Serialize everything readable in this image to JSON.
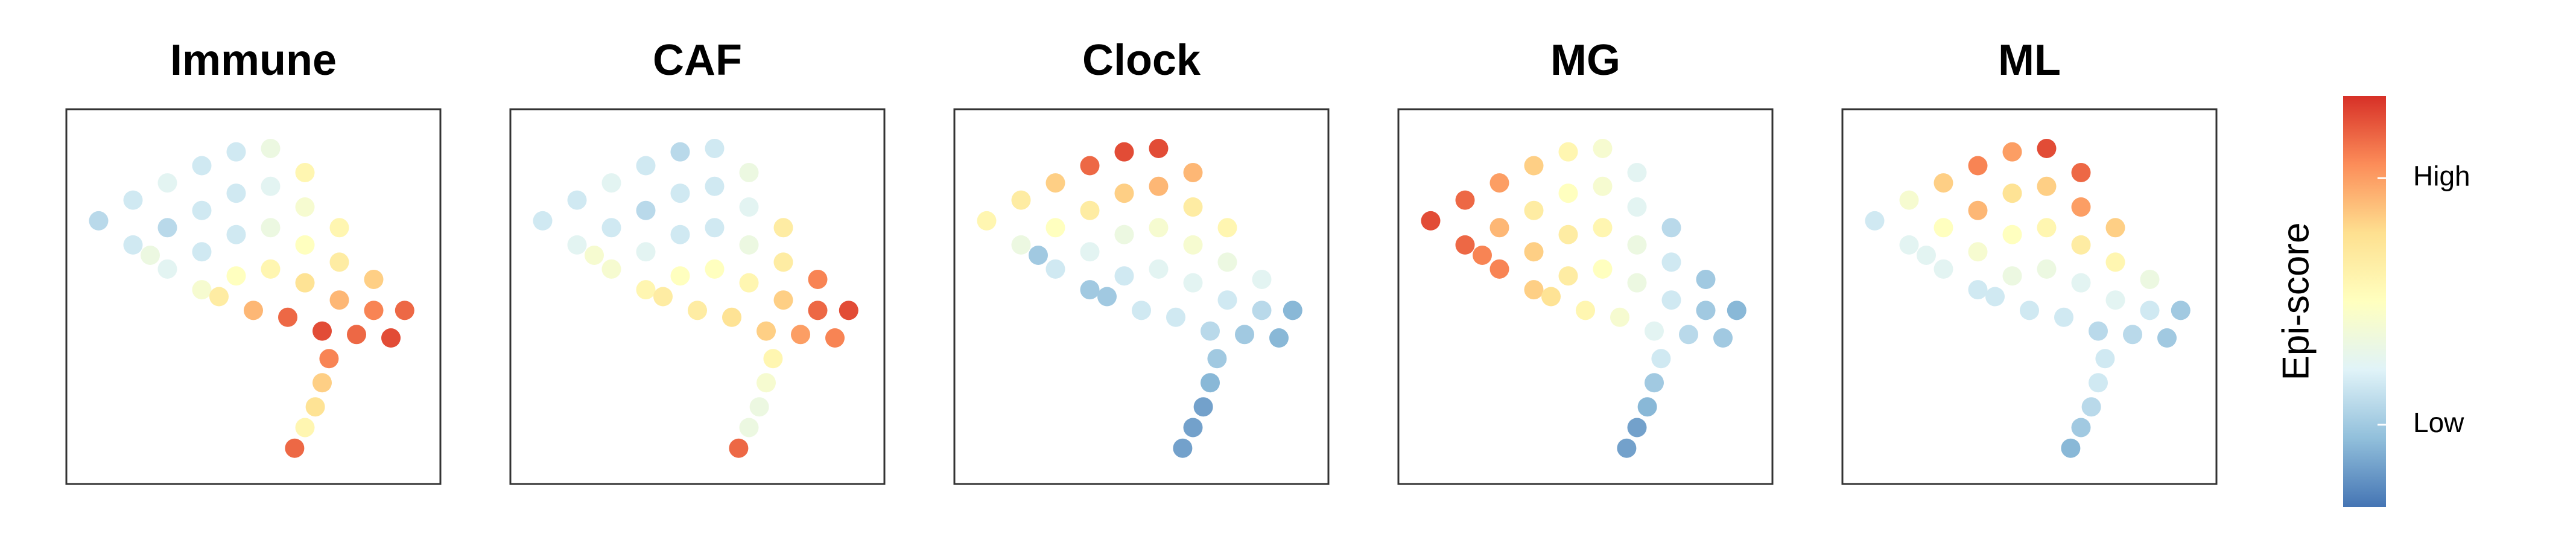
{
  "chart_data": [
    {
      "type": "scatter",
      "title": "Immune",
      "xlim": [
        0,
        10
      ],
      "ylim": [
        0,
        10
      ],
      "x": [
        0.5,
        1.5,
        2.5,
        3.5,
        4.5,
        5.5,
        6.5,
        1.5,
        2.5,
        3.5,
        4.5,
        5.5,
        6.5,
        7.5,
        2.5,
        3.5,
        4.5,
        5.5,
        6.5,
        7.5,
        8.5,
        3.5,
        4.5,
        5.5,
        6.5,
        7.5,
        8.5,
        9.4,
        5.0,
        6.0,
        7.0,
        8.0,
        9.0,
        7.2,
        7.0,
        6.8,
        6.5,
        6.2,
        2.0,
        4.0
      ],
      "y": [
        7.2,
        7.8,
        8.3,
        8.8,
        9.2,
        9.3,
        8.6,
        6.5,
        7.0,
        7.5,
        8.0,
        8.2,
        7.6,
        7.0,
        5.8,
        6.3,
        6.8,
        7.0,
        6.5,
        6.0,
        5.5,
        5.2,
        5.6,
        5.8,
        5.4,
        4.9,
        4.6,
        4.6,
        4.6,
        4.4,
        4.0,
        3.9,
        3.8,
        3.2,
        2.5,
        1.8,
        1.2,
        0.6,
        6.2,
        5.0
      ],
      "values": [
        0.25,
        0.3,
        0.35,
        0.3,
        0.3,
        0.4,
        0.55,
        0.3,
        0.25,
        0.3,
        0.3,
        0.35,
        0.45,
        0.55,
        0.35,
        0.3,
        0.3,
        0.4,
        0.5,
        0.6,
        0.7,
        0.45,
        0.5,
        0.55,
        0.65,
        0.75,
        0.85,
        0.9,
        0.75,
        0.9,
        0.95,
        0.9,
        0.95,
        0.85,
        0.7,
        0.65,
        0.55,
        0.9,
        0.4,
        0.6
      ]
    },
    {
      "type": "scatter",
      "title": "CAF",
      "xlim": [
        0,
        10
      ],
      "ylim": [
        0,
        10
      ],
      "x": [
        0.5,
        1.5,
        2.5,
        3.5,
        4.5,
        5.5,
        6.5,
        1.5,
        2.5,
        3.5,
        4.5,
        5.5,
        6.5,
        7.5,
        2.5,
        3.5,
        4.5,
        5.5,
        6.5,
        7.5,
        8.5,
        3.5,
        4.5,
        5.5,
        6.5,
        7.5,
        8.5,
        9.4,
        5.0,
        6.0,
        7.0,
        8.0,
        9.0,
        7.2,
        7.0,
        6.8,
        6.5,
        6.2,
        2.0,
        4.0
      ],
      "y": [
        7.2,
        7.8,
        8.3,
        8.8,
        9.2,
        9.3,
        8.6,
        6.5,
        7.0,
        7.5,
        8.0,
        8.2,
        7.6,
        7.0,
        5.8,
        6.3,
        6.8,
        7.0,
        6.5,
        6.0,
        5.5,
        5.2,
        5.6,
        5.8,
        5.4,
        4.9,
        4.6,
        4.6,
        4.6,
        4.4,
        4.0,
        3.9,
        3.8,
        3.2,
        2.5,
        1.8,
        1.2,
        0.6,
        6.2,
        5.0
      ],
      "values": [
        0.3,
        0.3,
        0.35,
        0.3,
        0.25,
        0.3,
        0.4,
        0.35,
        0.3,
        0.25,
        0.3,
        0.3,
        0.35,
        0.6,
        0.45,
        0.35,
        0.3,
        0.3,
        0.4,
        0.6,
        0.85,
        0.55,
        0.5,
        0.5,
        0.55,
        0.7,
        0.9,
        0.95,
        0.6,
        0.65,
        0.7,
        0.8,
        0.85,
        0.55,
        0.45,
        0.4,
        0.4,
        0.9,
        0.45,
        0.6
      ]
    },
    {
      "type": "scatter",
      "title": "Clock",
      "xlim": [
        0,
        10
      ],
      "ylim": [
        0,
        10
      ],
      "x": [
        0.5,
        1.5,
        2.5,
        3.5,
        4.5,
        5.5,
        6.5,
        1.5,
        2.5,
        3.5,
        4.5,
        5.5,
        6.5,
        7.5,
        2.5,
        3.5,
        4.5,
        5.5,
        6.5,
        7.5,
        8.5,
        3.5,
        4.5,
        5.5,
        6.5,
        7.5,
        8.5,
        9.4,
        5.0,
        6.0,
        7.0,
        8.0,
        9.0,
        7.2,
        7.0,
        6.8,
        6.5,
        6.2,
        2.0,
        4.0
      ],
      "y": [
        7.2,
        7.8,
        8.3,
        8.8,
        9.2,
        9.3,
        8.6,
        6.5,
        7.0,
        7.5,
        8.0,
        8.2,
        7.6,
        7.0,
        5.8,
        6.3,
        6.8,
        7.0,
        6.5,
        6.0,
        5.5,
        5.2,
        5.6,
        5.8,
        5.4,
        4.9,
        4.6,
        4.6,
        4.6,
        4.4,
        4.0,
        3.9,
        3.8,
        3.2,
        2.5,
        1.8,
        1.2,
        0.6,
        6.2,
        5.0
      ],
      "values": [
        0.55,
        0.6,
        0.7,
        0.9,
        0.95,
        0.95,
        0.75,
        0.4,
        0.5,
        0.6,
        0.7,
        0.75,
        0.6,
        0.55,
        0.3,
        0.35,
        0.4,
        0.45,
        0.45,
        0.4,
        0.35,
        0.2,
        0.3,
        0.35,
        0.35,
        0.3,
        0.25,
        0.15,
        0.3,
        0.3,
        0.25,
        0.2,
        0.15,
        0.2,
        0.15,
        0.1,
        0.1,
        0.1,
        0.2,
        0.2
      ]
    },
    {
      "type": "scatter",
      "title": "MG",
      "xlim": [
        0,
        10
      ],
      "ylim": [
        0,
        10
      ],
      "x": [
        0.5,
        1.5,
        2.5,
        3.5,
        4.5,
        5.5,
        6.5,
        1.5,
        2.5,
        3.5,
        4.5,
        5.5,
        6.5,
        7.5,
        2.5,
        3.5,
        4.5,
        5.5,
        6.5,
        7.5,
        8.5,
        3.5,
        4.5,
        5.5,
        6.5,
        7.5,
        8.5,
        9.4,
        5.0,
        6.0,
        7.0,
        8.0,
        9.0,
        7.2,
        7.0,
        6.8,
        6.5,
        6.2,
        2.0,
        4.0
      ],
      "y": [
        7.2,
        7.8,
        8.3,
        8.8,
        9.2,
        9.3,
        8.6,
        6.5,
        7.0,
        7.5,
        8.0,
        8.2,
        7.6,
        7.0,
        5.8,
        6.3,
        6.8,
        7.0,
        6.5,
        6.0,
        5.5,
        5.2,
        5.6,
        5.8,
        5.4,
        4.9,
        4.6,
        4.6,
        4.6,
        4.4,
        4.0,
        3.9,
        3.8,
        3.2,
        2.5,
        1.8,
        1.2,
        0.6,
        6.2,
        5.0
      ],
      "values": [
        0.95,
        0.9,
        0.8,
        0.7,
        0.55,
        0.45,
        0.35,
        0.9,
        0.75,
        0.6,
        0.5,
        0.45,
        0.35,
        0.25,
        0.85,
        0.7,
        0.6,
        0.55,
        0.4,
        0.3,
        0.2,
        0.7,
        0.6,
        0.5,
        0.4,
        0.3,
        0.2,
        0.15,
        0.55,
        0.45,
        0.35,
        0.25,
        0.2,
        0.3,
        0.2,
        0.15,
        0.1,
        0.1,
        0.85,
        0.65
      ]
    },
    {
      "type": "scatter",
      "title": "ML",
      "xlim": [
        0,
        10
      ],
      "ylim": [
        0,
        10
      ],
      "x": [
        0.5,
        1.5,
        2.5,
        3.5,
        4.5,
        5.5,
        6.5,
        1.5,
        2.5,
        3.5,
        4.5,
        5.5,
        6.5,
        7.5,
        2.5,
        3.5,
        4.5,
        5.5,
        6.5,
        7.5,
        8.5,
        3.5,
        4.5,
        5.5,
        6.5,
        7.5,
        8.5,
        9.4,
        5.0,
        6.0,
        7.0,
        8.0,
        9.0,
        7.2,
        7.0,
        6.8,
        6.5,
        6.2,
        2.0,
        4.0
      ],
      "y": [
        7.2,
        7.8,
        8.3,
        8.8,
        9.2,
        9.3,
        8.6,
        6.5,
        7.0,
        7.5,
        8.0,
        8.2,
        7.6,
        7.0,
        5.8,
        6.3,
        6.8,
        7.0,
        6.5,
        6.0,
        5.5,
        5.2,
        5.6,
        5.8,
        5.4,
        4.9,
        4.6,
        4.6,
        4.6,
        4.4,
        4.0,
        3.9,
        3.8,
        3.2,
        2.5,
        1.8,
        1.2,
        0.6,
        6.2,
        5.0
      ],
      "values": [
        0.3,
        0.45,
        0.7,
        0.85,
        0.8,
        0.95,
        0.9,
        0.35,
        0.5,
        0.75,
        0.65,
        0.7,
        0.8,
        0.7,
        0.35,
        0.45,
        0.5,
        0.55,
        0.6,
        0.55,
        0.4,
        0.3,
        0.4,
        0.4,
        0.35,
        0.35,
        0.3,
        0.2,
        0.3,
        0.3,
        0.25,
        0.25,
        0.2,
        0.3,
        0.3,
        0.25,
        0.2,
        0.15,
        0.35,
        0.3
      ]
    }
  ],
  "colorbar": {
    "label": "Epi-score",
    "lim": [
      0,
      1
    ],
    "ticks": [
      {
        "value": 0.8,
        "label": "High"
      },
      {
        "value": 0.2,
        "label": "Low"
      }
    ],
    "colors": [
      "#4575b4",
      "#91bfdb",
      "#e0f3f8",
      "#ffffbf",
      "#fee090",
      "#fc8d59",
      "#d73027"
    ]
  }
}
